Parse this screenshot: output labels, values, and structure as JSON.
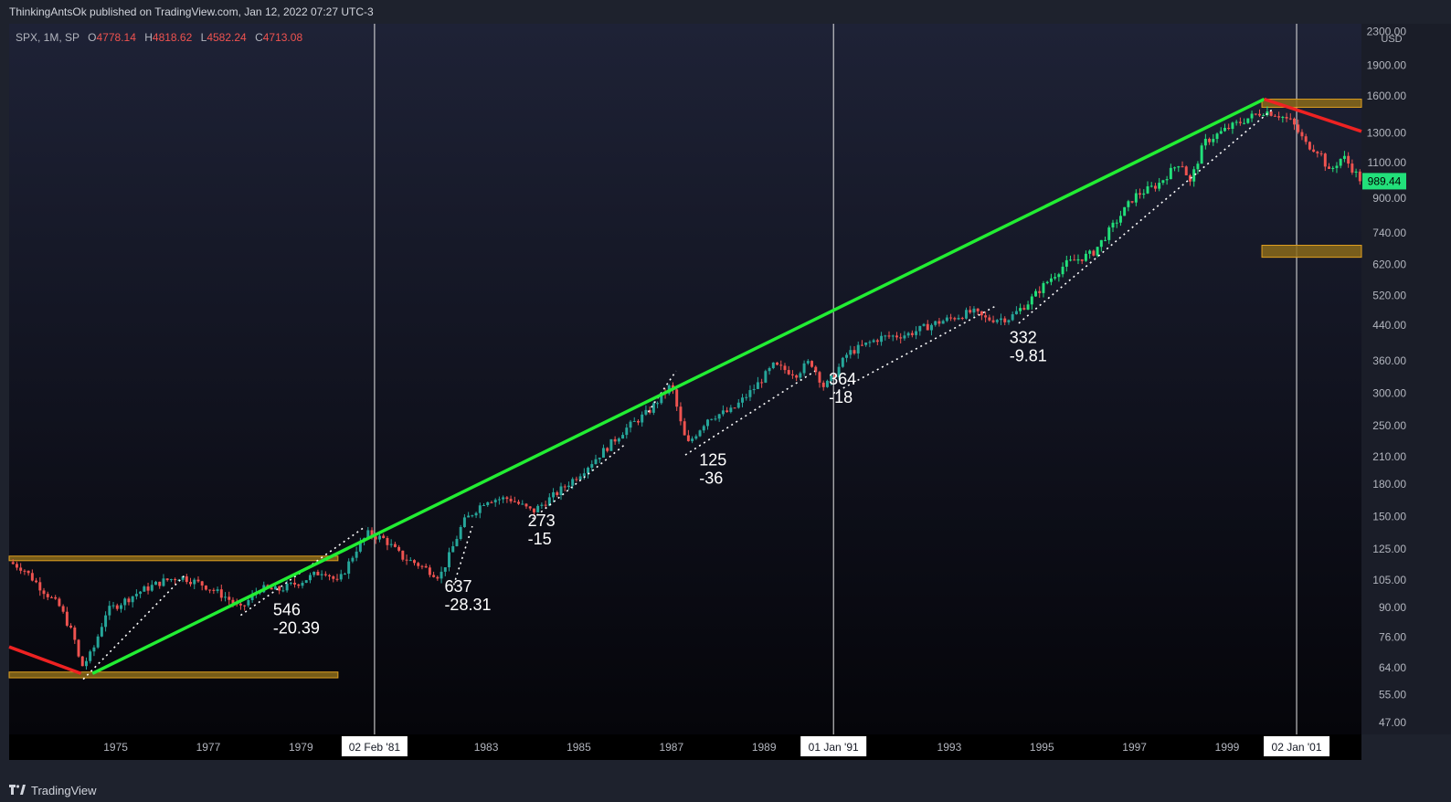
{
  "header": {
    "text": "ThinkingAntsOk published on TradingView.com, Jan 12, 2022 07:27 UTC-3"
  },
  "legend": {
    "symbol": "SPX, 1M, SP",
    "open_label": "O",
    "open": "4778.14",
    "high_label": "H",
    "high": "4818.62",
    "low_label": "L",
    "low": "4582.24",
    "close_label": "C",
    "close": "4713.08"
  },
  "footer": {
    "brand": "TradingView"
  },
  "chart_data": {
    "type": "candlestick",
    "scale": "log",
    "currency": "USD",
    "y_ticks": [
      "2300.00",
      "1900.00",
      "1600.00",
      "1300.00",
      "1100.00",
      "900.00",
      "740.00",
      "620.00",
      "520.00",
      "440.00",
      "360.00",
      "300.00",
      "250.00",
      "210.00",
      "180.00",
      "150.00",
      "125.00",
      "105.00",
      "90.00",
      "76.00",
      "64.00",
      "55.00",
      "47.00"
    ],
    "ylim": [
      44,
      2400
    ],
    "x_ticks": [
      "1975",
      "1977",
      "1979",
      "1983",
      "1985",
      "1987",
      "1989",
      "1993",
      "1995",
      "1997",
      "1999"
    ],
    "xlim": [
      1973.2,
      2002.4
    ],
    "vertical_lines": [
      {
        "label": "02 Feb '81",
        "x": 1981.09
      },
      {
        "label": "01 Jan '91",
        "x": 1991.0
      },
      {
        "label": "02 Jan '01",
        "x": 2001.0
      }
    ],
    "last_price": "989.44",
    "last_price_value": 989.44,
    "price_path": [
      [
        1973.2,
        116
      ],
      [
        1973.5,
        112
      ],
      [
        1973.9,
        100
      ],
      [
        1974.3,
        90
      ],
      [
        1974.6,
        76
      ],
      [
        1974.75,
        64
      ],
      [
        1975.0,
        70
      ],
      [
        1975.3,
        88
      ],
      [
        1975.6,
        92
      ],
      [
        1976.0,
        98
      ],
      [
        1976.5,
        104
      ],
      [
        1976.9,
        107
      ],
      [
        1977.4,
        102
      ],
      [
        1977.9,
        95
      ],
      [
        1978.2,
        89
      ],
      [
        1978.6,
        100
      ],
      [
        1979.0,
        99
      ],
      [
        1979.5,
        104
      ],
      [
        1980.0,
        111
      ],
      [
        1980.3,
        103
      ],
      [
        1980.7,
        125
      ],
      [
        1980.95,
        136
      ],
      [
        1981.3,
        132
      ],
      [
        1981.7,
        119
      ],
      [
        1982.0,
        115
      ],
      [
        1982.5,
        107
      ],
      [
        1982.7,
        120
      ],
      [
        1983.0,
        145
      ],
      [
        1983.5,
        165
      ],
      [
        1984.0,
        166
      ],
      [
        1984.5,
        154
      ],
      [
        1985.0,
        170
      ],
      [
        1985.5,
        190
      ],
      [
        1986.0,
        215
      ],
      [
        1986.5,
        245
      ],
      [
        1987.0,
        270
      ],
      [
        1987.5,
        315
      ],
      [
        1987.75,
        240
      ],
      [
        1987.85,
        225
      ],
      [
        1988.3,
        262
      ],
      [
        1988.8,
        272
      ],
      [
        1989.3,
        310
      ],
      [
        1989.7,
        350
      ],
      [
        1990.2,
        335
      ],
      [
        1990.5,
        360
      ],
      [
        1990.8,
        310
      ],
      [
        1991.0,
        330
      ],
      [
        1991.3,
        375
      ],
      [
        1992.0,
        410
      ],
      [
        1992.6,
        418
      ],
      [
        1993.2,
        445
      ],
      [
        1994.0,
        475
      ],
      [
        1994.3,
        455
      ],
      [
        1994.8,
        458
      ],
      [
        1995.2,
        500
      ],
      [
        1995.6,
        560
      ],
      [
        1996.0,
        620
      ],
      [
        1996.6,
        660
      ],
      [
        1997.0,
        760
      ],
      [
        1997.5,
        910
      ],
      [
        1998.0,
        970
      ],
      [
        1998.5,
        1110
      ],
      [
        1998.7,
        980
      ],
      [
        1999.0,
        1230
      ],
      [
        1999.5,
        1330
      ],
      [
        2000.0,
        1420
      ],
      [
        2000.3,
        1470
      ],
      [
        2000.6,
        1440
      ],
      [
        2000.9,
        1380
      ],
      [
        2001.2,
        1220
      ],
      [
        2001.5,
        1170
      ],
      [
        2001.7,
        1040
      ],
      [
        2002.0,
        1140
      ],
      [
        2002.4,
        989
      ]
    ],
    "green_trendline": [
      [
        1975.0,
        62
      ],
      [
        2000.3,
        1570
      ]
    ],
    "red_lines": [
      {
        "from": [
          1973.2,
          72
        ],
        "to": [
          1974.75,
          62
        ]
      },
      {
        "from": [
          2000.3,
          1570
        ],
        "to": [
          2002.4,
          1310
        ]
      }
    ],
    "zones": [
      {
        "x0": 1973.2,
        "x1": 1980.3,
        "y0": 117,
        "y1": 120
      },
      {
        "x0": 1973.2,
        "x1": 1980.3,
        "y0": 60.5,
        "y1": 62.5
      },
      {
        "x0": 2000.25,
        "x1": 2002.4,
        "y0": 1500,
        "y1": 1570
      },
      {
        "x0": 2000.25,
        "x1": 2002.4,
        "y0": 645,
        "y1": 690
      }
    ],
    "dotted_channels": [
      [
        [
          1974.8,
          60
        ],
        [
          1977.0,
          108
        ]
      ],
      [
        [
          1978.2,
          86
        ],
        [
          1980.9,
          142
        ]
      ],
      [
        [
          1982.8,
          102
        ],
        [
          1983.2,
          142
        ]
      ],
      [
        [
          1984.5,
          148
        ],
        [
          1986.5,
          225
        ]
      ],
      [
        [
          1987.8,
          212
        ],
        [
          1990.6,
          340
        ]
      ],
      [
        [
          1991.0,
          300
        ],
        [
          1994.5,
          490
        ]
      ],
      [
        [
          1995.0,
          445
        ],
        [
          2000.5,
          1490
        ]
      ],
      [
        [
          1987.0,
          270
        ],
        [
          1987.6,
          340
        ]
      ]
    ],
    "annotations": [
      {
        "x": 1978.9,
        "y": 86,
        "line1": "546",
        "line2": "-20.39"
      },
      {
        "x": 1982.6,
        "y": 98,
        "line1": "637",
        "line2": "-28.31"
      },
      {
        "x": 1984.4,
        "y": 142,
        "line1": "273",
        "line2": "-15"
      },
      {
        "x": 1988.1,
        "y": 200,
        "line1": "125",
        "line2": "-36"
      },
      {
        "x": 1990.9,
        "y": 315,
        "line1": "364",
        "line2": "-18"
      },
      {
        "x": 1994.8,
        "y": 398,
        "line1": "332",
        "line2": "-9.81"
      }
    ],
    "colors": {
      "up": "#26a69a",
      "up_bright": "#22e07a",
      "down": "#ef5350",
      "trend_green": "#22ee33",
      "trend_red": "#ee2222",
      "zone_fill": "#8a6a1a",
      "zone_stroke": "#e0a020",
      "axis_text": "#b2b5be",
      "last_price_bg": "#22e07a",
      "bg_top": "#1e2236",
      "bg_bottom": "#05050a"
    }
  }
}
